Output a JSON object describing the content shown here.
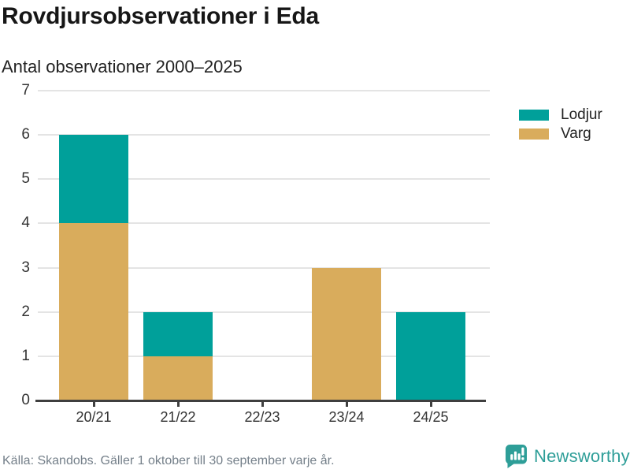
{
  "header": {
    "title": "Rovdjursobservationer i Eda",
    "subtitle": "Antal observationer 2000–2025"
  },
  "chart_data": {
    "type": "bar",
    "stacked": true,
    "title": "Rovdjursobservationer i Eda",
    "subtitle": "Antal observationer 2000–2025",
    "categories": [
      "20/21",
      "21/22",
      "22/23",
      "23/24",
      "24/25"
    ],
    "series": [
      {
        "name": "Varg",
        "color": "#D9AC5C",
        "values": [
          4,
          1,
          0,
          3,
          0
        ]
      },
      {
        "name": "Lodjur",
        "color": "#00A09A",
        "values": [
          2,
          1,
          0,
          0,
          2
        ]
      }
    ],
    "totals": [
      6,
      2,
      0,
      3,
      2
    ],
    "xlabel": "",
    "ylabel": "",
    "ylim": [
      0,
      7
    ],
    "yticks": [
      0,
      1,
      2,
      3,
      4,
      5,
      6,
      7
    ],
    "grid": true,
    "legend_position": "right",
    "legend_order": [
      "Lodjur",
      "Varg"
    ]
  },
  "legend": {
    "items": [
      {
        "label": "Lodjur",
        "color": "#00A09A"
      },
      {
        "label": "Varg",
        "color": "#D9AC5C"
      }
    ]
  },
  "footer": {
    "source": "Källa: Skandobs. Gäller 1 oktober till 30 september varje år.",
    "brand": "Newsworthy"
  },
  "colors": {
    "teal": "#00A09A",
    "gold": "#D9AC5C",
    "axis": "#3F3F3F",
    "grid": "#E4E4E4",
    "title_text": "#161616",
    "tick_text": "#333333",
    "muted_text": "#75808A",
    "brand_teal": "#2E9E98"
  }
}
